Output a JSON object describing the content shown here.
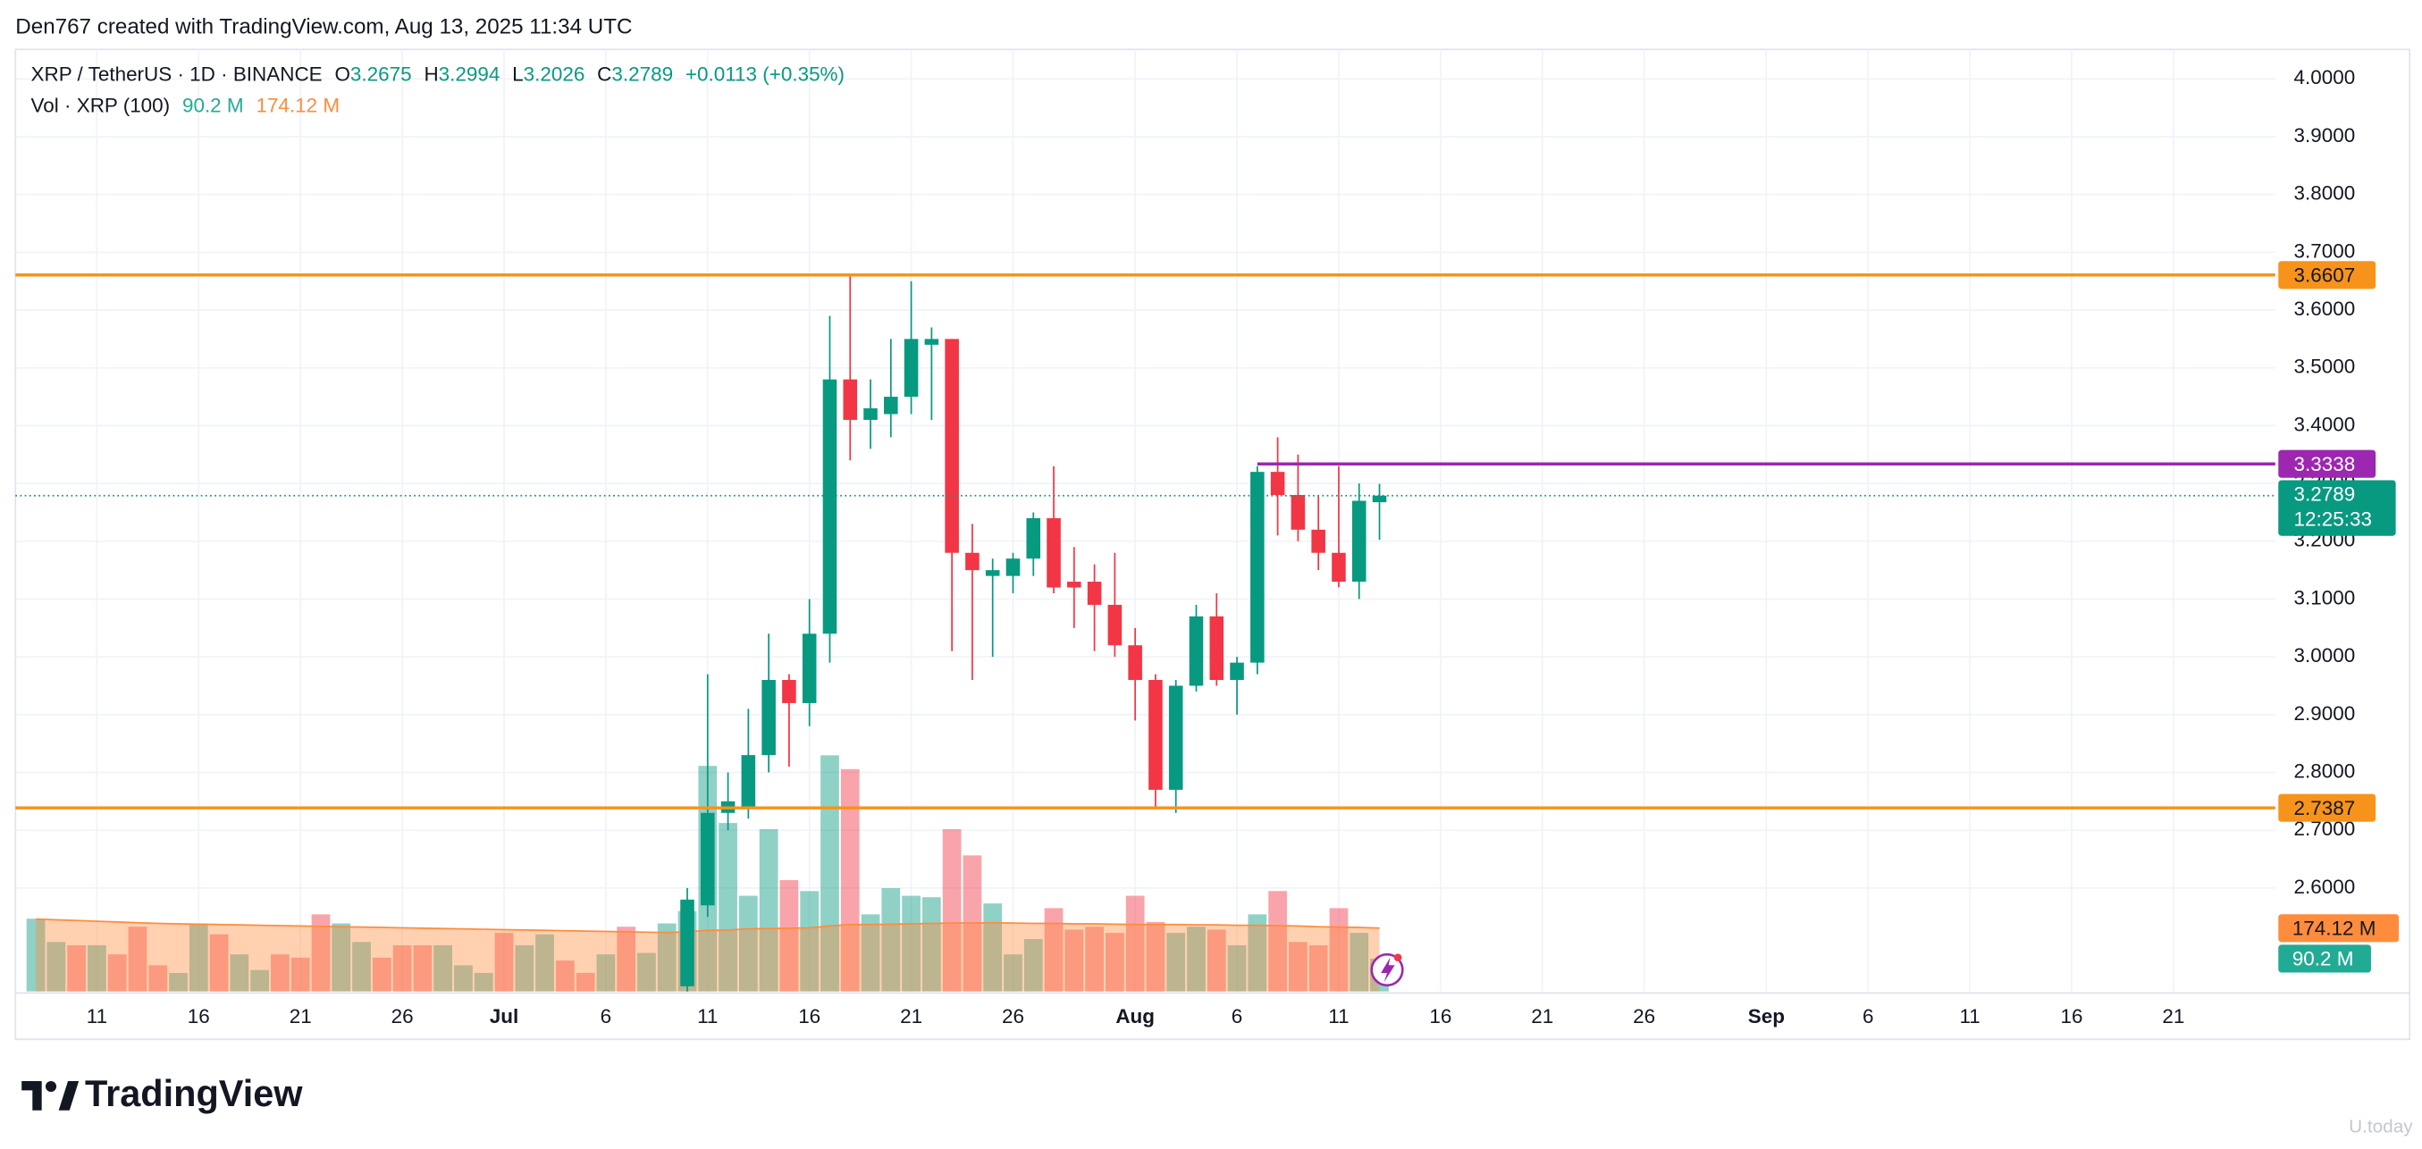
{
  "header": "Den767 created with TradingView.com, Aug 13, 2025 11:34 UTC",
  "logo": "TradingView",
  "watermark": "U.today",
  "chart_data": {
    "type": "candlestick",
    "legend": {
      "symbol": "XRP / TetherUS · 1D · BINANCE",
      "open_label": "O",
      "high_label": "H",
      "low_label": "L",
      "close_label": "C",
      "change": "+0.0113 (+0.35%)",
      "volume_title": "Vol · XRP (100)"
    },
    "up_color": "#089981",
    "down_color": "#f23645",
    "xlim": [
      "06-07",
      "09-26"
    ],
    "xticks": [
      {
        "value": "06-11",
        "label": "11"
      },
      {
        "value": "06-16",
        "label": "16"
      },
      {
        "value": "06-21",
        "label": "21"
      },
      {
        "value": "06-26",
        "label": "26"
      },
      {
        "value": "07-01",
        "label": "Jul"
      },
      {
        "value": "07-06",
        "label": "6"
      },
      {
        "value": "07-11",
        "label": "11"
      },
      {
        "value": "07-16",
        "label": "16"
      },
      {
        "value": "07-21",
        "label": "21"
      },
      {
        "value": "07-26",
        "label": "26"
      },
      {
        "value": "08-01",
        "label": "Aug"
      },
      {
        "value": "08-06",
        "label": "6"
      },
      {
        "value": "08-11",
        "label": "11"
      },
      {
        "value": "08-16",
        "label": "16"
      },
      {
        "value": "08-21",
        "label": "21"
      },
      {
        "value": "08-26",
        "label": "26"
      },
      {
        "value": "09-01",
        "label": "Sep"
      },
      {
        "value": "09-06",
        "label": "6"
      },
      {
        "value": "09-11",
        "label": "11"
      },
      {
        "value": "09-16",
        "label": "16"
      },
      {
        "value": "09-21",
        "label": "21"
      }
    ],
    "ylim": [
      2.421,
      4.051
    ],
    "yticks": [
      {
        "value": 2.6,
        "label": "2.6000"
      },
      {
        "value": 2.7,
        "label": "2.7000"
      },
      {
        "value": 2.8,
        "label": "2.8000"
      },
      {
        "value": 2.9,
        "label": "2.9000"
      },
      {
        "value": 3.0,
        "label": "3.0000"
      },
      {
        "value": 3.1,
        "label": "3.1000"
      },
      {
        "value": 3.2,
        "label": "3.2000"
      },
      {
        "value": 3.3,
        "label": "3.3000"
      },
      {
        "value": 3.4,
        "label": "3.4000"
      },
      {
        "value": 3.5,
        "label": "3.5000"
      },
      {
        "value": 3.6,
        "label": "3.6000"
      },
      {
        "value": 3.7,
        "label": "3.7000"
      },
      {
        "value": 3.8,
        "label": "3.8000"
      },
      {
        "value": 3.9,
        "label": "3.9000"
      },
      {
        "value": 4.0,
        "label": "4.0000"
      }
    ],
    "grid": true,
    "candles": {
      "x": [
        "07-10",
        "07-11",
        "07-12",
        "07-13",
        "07-14",
        "07-15",
        "07-16",
        "07-17",
        "07-18",
        "07-19",
        "07-20",
        "07-21",
        "07-22",
        "07-23",
        "07-24",
        "07-25",
        "07-26",
        "07-27",
        "07-28",
        "07-29",
        "07-30",
        "07-31",
        "08-01",
        "08-02",
        "08-03",
        "08-04",
        "08-05",
        "08-06",
        "08-07",
        "08-08",
        "08-09",
        "08-10",
        "08-11",
        "08-12",
        "08-13"
      ],
      "open": [
        2.43,
        2.57,
        2.73,
        2.74,
        2.83,
        2.96,
        2.92,
        3.04,
        3.48,
        3.41,
        3.42,
        3.45,
        3.54,
        3.55,
        3.18,
        3.14,
        3.14,
        3.17,
        3.24,
        3.13,
        3.13,
        3.09,
        3.02,
        2.96,
        2.77,
        2.95,
        3.07,
        2.96,
        2.99,
        3.32,
        3.28,
        3.22,
        3.18,
        3.13,
        3.2675
      ],
      "high": [
        2.6,
        2.97,
        2.8,
        2.91,
        3.04,
        2.97,
        3.1,
        3.59,
        3.66,
        3.48,
        3.55,
        3.65,
        3.57,
        3.55,
        3.23,
        3.17,
        3.18,
        3.25,
        3.33,
        3.19,
        3.16,
        3.18,
        3.05,
        2.97,
        2.96,
        3.09,
        3.11,
        3.0,
        3.33,
        3.38,
        3.35,
        3.28,
        3.33,
        3.3,
        3.2994
      ],
      "low": [
        2.4,
        2.55,
        2.7,
        2.72,
        2.8,
        2.81,
        2.88,
        2.99,
        3.34,
        3.36,
        3.38,
        3.42,
        3.41,
        3.01,
        2.96,
        3.0,
        3.11,
        3.14,
        3.11,
        3.05,
        3.01,
        3.0,
        2.89,
        2.74,
        2.73,
        2.94,
        2.95,
        2.9,
        2.97,
        3.21,
        3.2,
        3.15,
        3.12,
        3.1,
        3.2026
      ],
      "close": [
        2.58,
        2.73,
        2.75,
        2.83,
        2.96,
        2.92,
        3.04,
        3.48,
        3.41,
        3.43,
        3.45,
        3.55,
        3.55,
        3.18,
        3.15,
        3.15,
        3.17,
        3.24,
        3.12,
        3.12,
        3.09,
        3.02,
        2.96,
        2.77,
        2.95,
        3.07,
        2.96,
        2.99,
        3.32,
        3.28,
        3.22,
        3.18,
        3.13,
        3.27,
        3.2789
      ]
    },
    "countdown": "12:25:33",
    "last_price_color": "#089981",
    "levels": [
      {
        "value": 3.6607,
        "color": "#f7931a",
        "text_color": "#131722"
      },
      {
        "value": 2.7387,
        "color": "#f7931a",
        "text_color": "#131722"
      },
      {
        "value": 3.3338,
        "color": "#9c27b0",
        "text_color": "#ffffff",
        "start": "08-07"
      }
    ],
    "volume": {
      "vlim": [
        0,
        2589
      ],
      "x": [
        "06-08",
        "06-09",
        "06-10",
        "06-11",
        "06-12",
        "06-13",
        "06-14",
        "06-15",
        "06-16",
        "06-17",
        "06-18",
        "06-19",
        "06-20",
        "06-21",
        "06-22",
        "06-23",
        "06-24",
        "06-25",
        "06-26",
        "06-27",
        "06-28",
        "06-29",
        "06-30",
        "07-01",
        "07-02",
        "07-03",
        "07-04",
        "07-05",
        "07-06",
        "07-07",
        "07-08",
        "07-09",
        "07-10",
        "07-11",
        "07-12",
        "07-13",
        "07-14",
        "07-15",
        "07-16",
        "07-17",
        "07-18",
        "07-19",
        "07-20",
        "07-21",
        "07-22",
        "07-23",
        "07-24",
        "07-25",
        "07-26",
        "07-27",
        "07-28",
        "07-29",
        "07-30",
        "07-31",
        "08-01",
        "08-02",
        "08-03",
        "08-04",
        "08-05",
        "08-06",
        "08-07",
        "08-08",
        "08-09",
        "08-10",
        "08-11",
        "08-12",
        "08-13"
      ],
      "values": [
        200,
        136,
        127,
        127,
        102,
        178,
        72,
        51,
        187,
        157,
        102,
        59,
        102,
        93,
        212,
        187,
        136,
        93,
        127,
        127,
        127,
        72,
        51,
        161,
        127,
        157,
        85,
        51,
        102,
        178,
        106,
        187,
        221,
        620,
        463,
        263,
        446,
        306,
        276,
        649,
        611,
        212,
        284,
        263,
        259,
        446,
        374,
        242,
        102,
        144,
        229,
        170,
        178,
        161,
        263,
        191,
        161,
        178,
        170,
        127,
        212,
        276,
        136,
        127,
        229,
        161,
        90.2
      ],
      "colors": [
        "#089981",
        "#089981",
        "#f23645",
        "#089981",
        "#f23645",
        "#f23645",
        "#f23645",
        "#089981",
        "#089981",
        "#f23645",
        "#089981",
        "#089981",
        "#f23645",
        "#f23645",
        "#f23645",
        "#089981",
        "#089981",
        "#f23645",
        "#f23645",
        "#f23645",
        "#089981",
        "#089981",
        "#089981",
        "#f23645",
        "#089981",
        "#089981",
        "#f23645",
        "#f23645",
        "#089981",
        "#f23645",
        "#089981",
        "#089981",
        "#089981",
        "#089981",
        "#089981",
        "#089981",
        "#089981",
        "#f23645",
        "#089981",
        "#089981",
        "#f23645",
        "#089981",
        "#089981",
        "#089981",
        "#089981",
        "#f23645",
        "#f23645",
        "#089981",
        "#089981",
        "#089981",
        "#f23645",
        "#f23645",
        "#f23645",
        "#f23645",
        "#f23645",
        "#f23645",
        "#089981",
        "#089981",
        "#f23645",
        "#089981",
        "#089981",
        "#f23645",
        "#f23645",
        "#f23645",
        "#f23645",
        "#089981",
        "#089981"
      ],
      "ma": [
        199,
        197,
        195,
        193,
        191,
        189,
        187,
        186,
        185,
        184,
        183,
        182,
        181,
        180,
        179,
        178,
        177,
        176,
        175,
        174,
        173,
        172,
        171,
        170,
        169,
        168,
        167,
        166,
        165,
        164,
        163,
        162,
        164,
        168,
        169,
        172,
        173,
        174,
        175,
        180,
        184,
        184,
        185,
        186,
        187,
        188,
        188,
        189,
        188,
        187,
        187,
        186,
        186,
        185,
        184,
        184,
        184,
        183,
        183,
        182,
        182,
        181,
        180,
        178,
        177,
        176,
        174.12
      ],
      "ma_color": "#ff8c3c",
      "value_color": "#22ab94",
      "markers": {
        "volume": {
          "value": 90.2,
          "label": "90.2 M"
        },
        "ma": {
          "value": 174.12,
          "label": "174.12 M"
        }
      }
    }
  }
}
